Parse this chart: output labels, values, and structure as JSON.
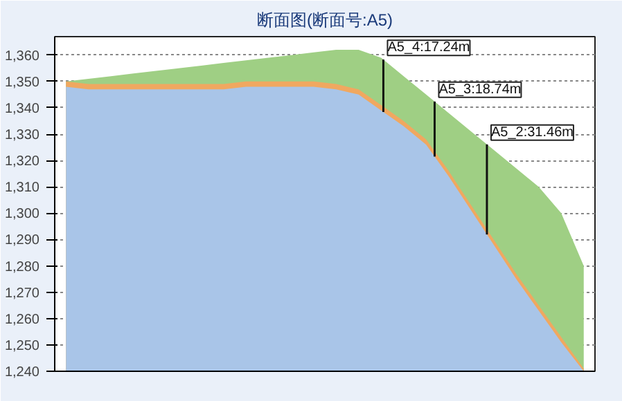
{
  "chart_data": {
    "type": "area",
    "title": "断面图(断面号:A5)",
    "categories": [
      null,
      null,
      null,
      null,
      null,
      null,
      null,
      null,
      null,
      null,
      null,
      null,
      null,
      null,
      null,
      null,
      null,
      null,
      null,
      null,
      null,
      null,
      null,
      null
    ],
    "ylim": [
      1240,
      1367
    ],
    "yticks": [
      {
        "value": 1240,
        "label": "1,240"
      },
      {
        "value": 1250,
        "label": "1,250"
      },
      {
        "value": 1260,
        "label": "1,260"
      },
      {
        "value": 1270,
        "label": "1,270"
      },
      {
        "value": 1280,
        "label": "1,280"
      },
      {
        "value": 1290,
        "label": "1,290"
      },
      {
        "value": 1300,
        "label": "1,300"
      },
      {
        "value": 1310,
        "label": "1,310"
      },
      {
        "value": 1320,
        "label": "1,320"
      },
      {
        "value": 1330,
        "label": "1,330"
      },
      {
        "value": 1340,
        "label": "1,340"
      },
      {
        "value": 1350,
        "label": "1,350"
      },
      {
        "value": 1360,
        "label": "1,360"
      }
    ],
    "grid": "y",
    "series": [
      {
        "color": "#9fcf84",
        "values": [
          1350,
          1351,
          1352,
          1353,
          1354,
          1355,
          1356,
          1357,
          1358,
          1359,
          1360,
          1361,
          1362,
          1362,
          1359,
          1352,
          1345,
          1338,
          1331,
          1324,
          1317,
          1310,
          1300,
          1280
        ]
      },
      {
        "color": "#f0a860",
        "values": [
          1350,
          1349,
          1349,
          1349,
          1349,
          1349,
          1349,
          1349,
          1350,
          1350,
          1350,
          1350,
          1349,
          1347,
          1341,
          1335,
          1328,
          1316,
          1303,
          1290,
          1277,
          1265,
          1253,
          1241
        ]
      },
      {
        "color": "#a9c5e8",
        "values": [
          1348,
          1347,
          1347,
          1347,
          1347,
          1347,
          1347,
          1347,
          1348,
          1348,
          1348,
          1348,
          1347,
          1345,
          1339,
          1333,
          1326,
          1314,
          1301,
          1288,
          1275,
          1263,
          1251,
          1240
        ]
      }
    ],
    "annotations": [
      "A5_4:17.24m",
      "A5_3:18.74m",
      "A5_2:31.46m"
    ]
  }
}
